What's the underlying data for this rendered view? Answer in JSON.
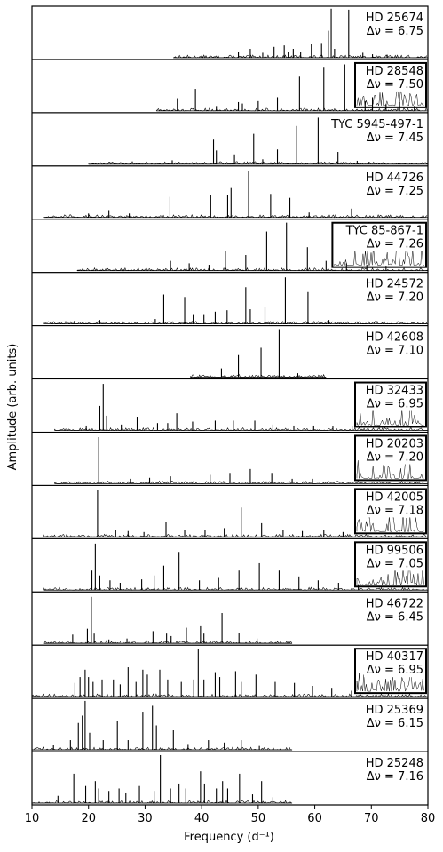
{
  "chart_data": {
    "type": "line",
    "xlabel": "Frequency (d⁻¹)",
    "ylabel": "Amplitude (arb. units)",
    "xlim": [
      10,
      80
    ],
    "xticks": [
      "10",
      "20",
      "30",
      "40",
      "50",
      "60",
      "70",
      "80"
    ],
    "layout": "15 vertically stacked panels sharing the frequency axis; star name and Δν printed at top-right of each panel; some panels have a boxed inset at top-right",
    "panels": [
      {
        "star": "HD 25674",
        "dnu": "Δν = 6.75",
        "boxed": false,
        "peaks": [
          [
            46.5,
            0.12
          ],
          [
            48.6,
            0.18
          ],
          [
            50.8,
            0.1
          ],
          [
            52.8,
            0.22
          ],
          [
            54.6,
            0.25
          ],
          [
            55.3,
            0.12
          ],
          [
            56.2,
            0.18
          ],
          [
            57.5,
            0.12
          ],
          [
            59.4,
            0.28
          ],
          [
            61.2,
            0.3
          ],
          [
            62.4,
            0.55
          ],
          [
            62.9,
            1.0
          ],
          [
            63.5,
            0.18
          ],
          [
            66.0,
            0.98
          ],
          [
            68.5,
            0.1
          ],
          [
            70.2,
            0.07
          ],
          [
            72.8,
            0.06
          ]
        ],
        "noise_range": [
          35,
          80
        ]
      },
      {
        "star": "HD 28548",
        "dnu": "Δν = 7.50",
        "boxed": true,
        "peaks": [
          [
            35.7,
            0.26
          ],
          [
            38.9,
            0.45
          ],
          [
            42.6,
            0.1
          ],
          [
            46.5,
            0.18
          ],
          [
            47.2,
            0.15
          ],
          [
            50.0,
            0.2
          ],
          [
            53.4,
            0.28
          ],
          [
            57.3,
            0.7
          ],
          [
            61.6,
            0.9
          ],
          [
            65.3,
            0.95
          ],
          [
            68.9,
            0.2
          ],
          [
            70.2,
            0.28
          ],
          [
            72.6,
            0.14
          ],
          [
            75.0,
            0.18
          ],
          [
            77.6,
            0.1
          ]
        ],
        "noise_range": [
          32,
          80
        ]
      },
      {
        "star": "TYC 5945-497-1",
        "dnu": "Δν = 7.45",
        "boxed": false,
        "peaks": [
          [
            34.8,
            0.08
          ],
          [
            42.1,
            0.5
          ],
          [
            42.6,
            0.28
          ],
          [
            45.8,
            0.2
          ],
          [
            49.2,
            0.62
          ],
          [
            50.8,
            0.1
          ],
          [
            53.4,
            0.3
          ],
          [
            56.8,
            0.78
          ],
          [
            60.6,
            0.95
          ],
          [
            64.1,
            0.25
          ],
          [
            67.5,
            0.07
          ],
          [
            69.6,
            0.05
          ]
        ],
        "noise_range": [
          20,
          80
        ]
      },
      {
        "star": "HD 44726",
        "dnu": "Δν = 7.25",
        "boxed": false,
        "peaks": [
          [
            20.0,
            0.08
          ],
          [
            23.6,
            0.15
          ],
          [
            27.2,
            0.08
          ],
          [
            34.4,
            0.42
          ],
          [
            41.6,
            0.45
          ],
          [
            44.6,
            0.45
          ],
          [
            45.2,
            0.6
          ],
          [
            48.3,
            0.95
          ],
          [
            52.2,
            0.48
          ],
          [
            55.6,
            0.4
          ],
          [
            59.0,
            0.1
          ],
          [
            66.5,
            0.18
          ]
        ],
        "noise_range": [
          12,
          80
        ]
      },
      {
        "star": "TYC 85-867-1",
        "dnu": "Δν = 7.26",
        "boxed": true,
        "peaks": [
          [
            34.5,
            0.2
          ],
          [
            37.8,
            0.15
          ],
          [
            41.3,
            0.12
          ],
          [
            44.2,
            0.4
          ],
          [
            47.8,
            0.32
          ],
          [
            51.5,
            0.8
          ],
          [
            55.0,
            0.98
          ],
          [
            58.7,
            0.48
          ],
          [
            62.0,
            0.2
          ],
          [
            65.6,
            0.15
          ],
          [
            69.2,
            0.12
          ],
          [
            72.6,
            0.1
          ]
        ],
        "noise_range": [
          18,
          80
        ]
      },
      {
        "star": "HD 24572",
        "dnu": "Δν = 7.20",
        "boxed": false,
        "peaks": [
          [
            17.5,
            0.06
          ],
          [
            22.0,
            0.08
          ],
          [
            26.0,
            0.05
          ],
          [
            31.8,
            0.1
          ],
          [
            33.3,
            0.6
          ],
          [
            37.0,
            0.55
          ],
          [
            38.5,
            0.2
          ],
          [
            40.4,
            0.2
          ],
          [
            42.4,
            0.25
          ],
          [
            44.5,
            0.28
          ],
          [
            47.8,
            0.75
          ],
          [
            48.6,
            0.3
          ],
          [
            51.2,
            0.35
          ],
          [
            54.8,
            0.95
          ],
          [
            58.8,
            0.65
          ],
          [
            62.5,
            0.08
          ]
        ],
        "noise_range": [
          12,
          80
        ]
      },
      {
        "star": "HD 42608",
        "dnu": "Δν = 7.10",
        "boxed": false,
        "peaks": [
          [
            43.5,
            0.18
          ],
          [
            46.5,
            0.45
          ],
          [
            50.5,
            0.6
          ],
          [
            53.7,
            0.98
          ],
          [
            57.0,
            0.08
          ]
        ],
        "noise_range": [
          38,
          62
        ]
      },
      {
        "star": "HD 32433",
        "dnu": "Δν = 6.95",
        "boxed": true,
        "peaks": [
          [
            19.6,
            0.1
          ],
          [
            22.0,
            0.5
          ],
          [
            22.6,
            0.95
          ],
          [
            23.2,
            0.3
          ],
          [
            25.8,
            0.12
          ],
          [
            28.6,
            0.28
          ],
          [
            32.2,
            0.15
          ],
          [
            34.0,
            0.15
          ],
          [
            35.6,
            0.35
          ],
          [
            38.4,
            0.18
          ],
          [
            42.4,
            0.2
          ],
          [
            45.6,
            0.2
          ],
          [
            49.4,
            0.2
          ],
          [
            52.6,
            0.12
          ],
          [
            56.3,
            0.1
          ],
          [
            59.8,
            0.1
          ],
          [
            63.2,
            0.08
          ],
          [
            66.6,
            0.08
          ]
        ],
        "noise_range": [
          14,
          80
        ]
      },
      {
        "star": "HD 20203",
        "dnu": "Δν = 7.20",
        "boxed": true,
        "peaks": [
          [
            21.8,
            0.95
          ],
          [
            27.4,
            0.1
          ],
          [
            30.8,
            0.12
          ],
          [
            34.5,
            0.15
          ],
          [
            41.5,
            0.18
          ],
          [
            45.0,
            0.22
          ],
          [
            48.6,
            0.3
          ],
          [
            52.4,
            0.22
          ],
          [
            56.0,
            0.1
          ],
          [
            59.6,
            0.1
          ]
        ],
        "noise_range": [
          14,
          80
        ]
      },
      {
        "star": "HD 42005",
        "dnu": "Δν = 7.18",
        "boxed": true,
        "peaks": [
          [
            21.6,
            0.95
          ],
          [
            24.8,
            0.15
          ],
          [
            27.0,
            0.12
          ],
          [
            29.8,
            0.1
          ],
          [
            33.7,
            0.3
          ],
          [
            37.0,
            0.15
          ],
          [
            40.6,
            0.15
          ],
          [
            44.0,
            0.18
          ],
          [
            47.0,
            0.6
          ],
          [
            50.6,
            0.28
          ],
          [
            54.4,
            0.15
          ],
          [
            57.8,
            0.12
          ],
          [
            61.6,
            0.15
          ],
          [
            65.0,
            0.1
          ]
        ],
        "noise_range": [
          12,
          80
        ]
      },
      {
        "star": "HD 99506",
        "dnu": "Δν = 7.05",
        "boxed": true,
        "peaks": [
          [
            20.6,
            0.4
          ],
          [
            21.2,
            0.95
          ],
          [
            22.0,
            0.3
          ],
          [
            23.8,
            0.2
          ],
          [
            25.6,
            0.15
          ],
          [
            29.4,
            0.22
          ],
          [
            31.6,
            0.3
          ],
          [
            33.3,
            0.5
          ],
          [
            36.0,
            0.78
          ],
          [
            39.6,
            0.2
          ],
          [
            43.0,
            0.25
          ],
          [
            46.6,
            0.4
          ],
          [
            50.2,
            0.55
          ],
          [
            53.7,
            0.4
          ],
          [
            57.2,
            0.28
          ],
          [
            60.6,
            0.2
          ],
          [
            64.2,
            0.15
          ],
          [
            67.7,
            0.12
          ]
        ],
        "noise_range": [
          12,
          80
        ]
      },
      {
        "star": "HD 46722",
        "dnu": "Δν = 6.45",
        "boxed": false,
        "peaks": [
          [
            17.2,
            0.18
          ],
          [
            19.8,
            0.3
          ],
          [
            20.5,
            0.95
          ],
          [
            21.0,
            0.2
          ],
          [
            23.6,
            0.08
          ],
          [
            26.8,
            0.1
          ],
          [
            31.4,
            0.25
          ],
          [
            33.8,
            0.2
          ],
          [
            34.6,
            0.15
          ],
          [
            37.3,
            0.32
          ],
          [
            39.8,
            0.35
          ],
          [
            40.4,
            0.2
          ],
          [
            43.6,
            0.62
          ],
          [
            46.6,
            0.22
          ],
          [
            49.8,
            0.1
          ]
        ],
        "noise_range": [
          12,
          56
        ]
      },
      {
        "star": "HD 40317",
        "dnu": "Δν = 6.95",
        "boxed": true,
        "peaks": [
          [
            17.6,
            0.28
          ],
          [
            18.5,
            0.4
          ],
          [
            19.4,
            0.55
          ],
          [
            20.0,
            0.4
          ],
          [
            20.8,
            0.3
          ],
          [
            22.4,
            0.35
          ],
          [
            24.4,
            0.35
          ],
          [
            25.6,
            0.25
          ],
          [
            27.0,
            0.6
          ],
          [
            28.4,
            0.3
          ],
          [
            29.6,
            0.55
          ],
          [
            30.4,
            0.45
          ],
          [
            32.6,
            0.55
          ],
          [
            34.0,
            0.35
          ],
          [
            36.4,
            0.3
          ],
          [
            38.6,
            0.35
          ],
          [
            39.4,
            0.98
          ],
          [
            40.4,
            0.35
          ],
          [
            42.4,
            0.5
          ],
          [
            43.2,
            0.4
          ],
          [
            46.0,
            0.52
          ],
          [
            47.0,
            0.3
          ],
          [
            49.6,
            0.45
          ],
          [
            53.0,
            0.3
          ],
          [
            56.4,
            0.28
          ],
          [
            59.6,
            0.22
          ],
          [
            63.0,
            0.18
          ],
          [
            66.5,
            0.12
          ]
        ],
        "noise_range": [
          10,
          80
        ]
      },
      {
        "star": "HD 25369",
        "dnu": "Δν = 6.15",
        "boxed": false,
        "peaks": [
          [
            13.8,
            0.1
          ],
          [
            16.8,
            0.2
          ],
          [
            18.2,
            0.55
          ],
          [
            18.9,
            0.7
          ],
          [
            19.4,
            1.0
          ],
          [
            20.2,
            0.35
          ],
          [
            22.6,
            0.2
          ],
          [
            25.1,
            0.6
          ],
          [
            27.0,
            0.2
          ],
          [
            29.6,
            0.78
          ],
          [
            31.3,
            0.9
          ],
          [
            32.0,
            0.5
          ],
          [
            35.0,
            0.4
          ],
          [
            37.6,
            0.12
          ],
          [
            41.2,
            0.2
          ],
          [
            44.0,
            0.15
          ],
          [
            47.0,
            0.2
          ],
          [
            50.2,
            0.08
          ]
        ],
        "noise_range": [
          10,
          56
        ]
      },
      {
        "star": "HD 25248",
        "dnu": "Δν = 7.16",
        "boxed": false,
        "peaks": [
          [
            14.6,
            0.15
          ],
          [
            17.4,
            0.6
          ],
          [
            19.5,
            0.35
          ],
          [
            21.2,
            0.45
          ],
          [
            21.8,
            0.3
          ],
          [
            23.6,
            0.25
          ],
          [
            25.4,
            0.3
          ],
          [
            26.6,
            0.2
          ],
          [
            29.0,
            0.35
          ],
          [
            31.6,
            0.25
          ],
          [
            32.7,
            0.98
          ],
          [
            34.5,
            0.3
          ],
          [
            36.0,
            0.4
          ],
          [
            37.2,
            0.3
          ],
          [
            39.8,
            0.65
          ],
          [
            40.5,
            0.4
          ],
          [
            42.6,
            0.3
          ],
          [
            43.7,
            0.45
          ],
          [
            44.6,
            0.3
          ],
          [
            46.7,
            0.6
          ],
          [
            49.0,
            0.18
          ],
          [
            50.6,
            0.45
          ],
          [
            52.6,
            0.12
          ]
        ],
        "noise_range": [
          10,
          56
        ]
      }
    ]
  }
}
